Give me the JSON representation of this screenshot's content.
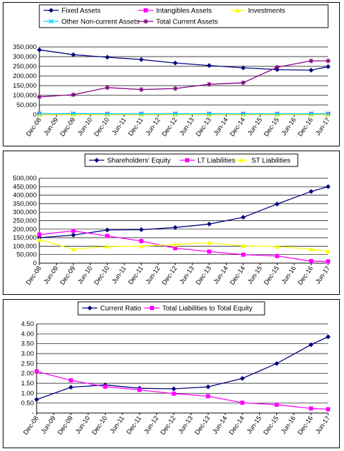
{
  "chart_data": [
    {
      "type": "line",
      "x": [
        "Dec-08",
        "Jun-09",
        "Dec-09",
        "Jun-10",
        "Dec-10",
        "Jun-11",
        "Dec-11",
        "Jun-12",
        "Dec-12",
        "Jun-13",
        "Dec-13",
        "Jun-14",
        "Dec-14",
        "Jun-15",
        "Dec-15",
        "Jun-16",
        "Dec-16",
        "Jun-17"
      ],
      "ylim": [
        0,
        350000
      ],
      "yticks": [
        0,
        50000,
        100000,
        150000,
        200000,
        250000,
        300000,
        350000
      ],
      "ytick_labels": [
        "0",
        "50,000",
        "100,000",
        "150,000",
        "200,000",
        "250,000",
        "300,000",
        "350,000"
      ],
      "grid": "horizontal",
      "legend": "top-inside-box",
      "series": [
        {
          "name": "Fixed Assets",
          "color": "#000080",
          "marker": "diamond",
          "values": [
            335000,
            null,
            310000,
            null,
            297000,
            null,
            285000,
            null,
            267000,
            null,
            254000,
            null,
            242000,
            null,
            233000,
            null,
            230000,
            248000
          ]
        },
        {
          "name": "Intangibles Assets",
          "color": "#ff00ff",
          "marker": "square",
          "values": [
            3000,
            null,
            3000,
            null,
            3000,
            null,
            3000,
            null,
            3000,
            null,
            3000,
            null,
            3000,
            null,
            3000,
            null,
            3000,
            3000
          ]
        },
        {
          "name": "Investments",
          "color": "#ffff00",
          "marker": "triangle",
          "values": [
            1000,
            null,
            1000,
            null,
            1000,
            null,
            1000,
            null,
            1000,
            null,
            1000,
            null,
            1000,
            null,
            1000,
            null,
            1000,
            1000
          ]
        },
        {
          "name": "Other Non-current Assets",
          "color": "#00ccff",
          "marker": "x",
          "values": [
            5000,
            null,
            6000,
            null,
            5000,
            null,
            5000,
            null,
            5000,
            null,
            5000,
            null,
            5000,
            null,
            5000,
            null,
            5000,
            5000
          ]
        },
        {
          "name": "Total Current Assets",
          "color": "#800080",
          "marker": "star",
          "values": [
            92000,
            null,
            103000,
            null,
            140000,
            null,
            130000,
            null,
            135000,
            null,
            157000,
            null,
            165000,
            null,
            245000,
            null,
            278000,
            278000
          ]
        }
      ]
    },
    {
      "type": "line",
      "x": [
        "Dec-08",
        "Jun-09",
        "Dec-09",
        "Jun-10",
        "Dec-10",
        "Jun-11",
        "Dec-11",
        "Jun-12",
        "Dec-12",
        "Jun-13",
        "Dec-13",
        "Jun-14",
        "Dec-14",
        "Jun-15",
        "Dec-15",
        "Jun-16",
        "Dec-16",
        "Jun-17"
      ],
      "ylim": [
        0,
        500000
      ],
      "yticks": [
        0,
        50000,
        100000,
        150000,
        200000,
        250000,
        300000,
        350000,
        400000,
        450000,
        500000
      ],
      "ytick_labels": [
        "0",
        "50,000",
        "100,000",
        "150,000",
        "200,000",
        "250,000",
        "300,000",
        "350,000",
        "400,000",
        "450,000",
        "500,000"
      ],
      "grid": "horizontal",
      "legend": "top-inside-box",
      "series": [
        {
          "name": "Shareholders' Equity",
          "color": "#000080",
          "marker": "diamond",
          "values": [
            150000,
            null,
            165000,
            null,
            195000,
            null,
            197000,
            null,
            210000,
            null,
            230000,
            null,
            270000,
            null,
            348000,
            null,
            422000,
            450000
          ]
        },
        {
          "name": "LT Liabilities",
          "color": "#ff00ff",
          "marker": "square",
          "values": [
            168000,
            null,
            190000,
            null,
            160000,
            null,
            130000,
            null,
            88000,
            null,
            68000,
            null,
            50000,
            null,
            42000,
            null,
            12000,
            10000
          ]
        },
        {
          "name": "ST Liabilities",
          "color": "#ffff00",
          "marker": "triangle",
          "values": [
            138000,
            null,
            82000,
            null,
            98000,
            null,
            100000,
            null,
            110000,
            null,
            120000,
            null,
            102000,
            null,
            98000,
            null,
            82000,
            70000
          ]
        }
      ]
    },
    {
      "type": "line",
      "x": [
        "Dec-08",
        "Jun-09",
        "Dec-09",
        "Jun-10",
        "Dec-10",
        "Jun-11",
        "Dec-11",
        "Jun-12",
        "Dec-12",
        "Jun-13",
        "Dec-13",
        "Jun-14",
        "Dec-14",
        "Jun-15",
        "Dec-15",
        "Jun-16",
        "Dec-16",
        "Jun-17"
      ],
      "ylim": [
        0,
        4.5
      ],
      "yticks": [
        0,
        0.5,
        1.0,
        1.5,
        2.0,
        2.5,
        3.0,
        3.5,
        4.0,
        4.5
      ],
      "ytick_labels": [
        "-",
        "0.50",
        "1.00",
        "1.50",
        "2.00",
        "2.50",
        "3.00",
        "3.50",
        "4.00",
        "4.50"
      ],
      "grid": "horizontal",
      "legend": "top-inside-box",
      "series": [
        {
          "name": "Current Ratio",
          "color": "#000080",
          "marker": "diamond",
          "values": [
            0.68,
            null,
            1.3,
            null,
            1.42,
            null,
            1.25,
            null,
            1.22,
            null,
            1.32,
            null,
            1.75,
            null,
            2.5,
            null,
            3.45,
            3.85
          ]
        },
        {
          "name": "Total Liabilities to Total Equity",
          "color": "#ff00ff",
          "marker": "square",
          "values": [
            2.1,
            null,
            1.65,
            null,
            1.33,
            null,
            1.17,
            null,
            0.98,
            null,
            0.85,
            null,
            0.52,
            null,
            0.42,
            null,
            0.23,
            0.19
          ]
        }
      ]
    }
  ]
}
